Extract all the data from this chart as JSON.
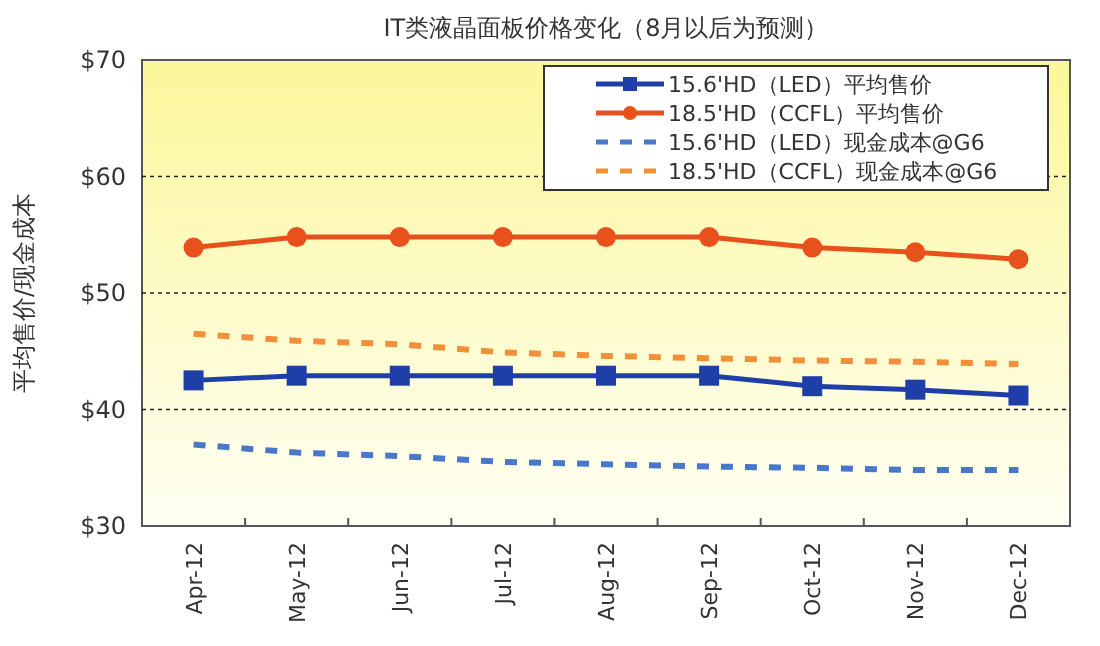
{
  "chart_data": {
    "type": "line",
    "title": "IT类液晶面板价格变化（8月以后为预测）",
    "ylabel": "平均售价/现金成本",
    "categories": [
      "Apr-12",
      "May-12",
      "Jun-12",
      "Jul-12",
      "Aug-12",
      "Sep-12",
      "Oct-12",
      "Nov-12",
      "Dec-12"
    ],
    "series": [
      {
        "name": "15.6'HD（LED）平均售价",
        "color": "#1f3fa8",
        "marker": "square",
        "line_style": "solid",
        "values": [
          42.5,
          42.9,
          42.9,
          42.9,
          42.9,
          42.9,
          42.0,
          41.7,
          41.2
        ]
      },
      {
        "name": "18.5'HD（CCFL）平均售价",
        "color": "#e8501c",
        "marker": "circle",
        "line_style": "solid",
        "values": [
          53.9,
          54.8,
          54.8,
          54.8,
          54.8,
          54.8,
          53.9,
          53.5,
          52.9
        ]
      },
      {
        "name": "15.6'HD（LED）现金成本@G6",
        "color": "#4a78c8",
        "marker": "none",
        "line_style": "dashed",
        "values": [
          37.0,
          36.3,
          36.0,
          35.5,
          35.3,
          35.1,
          35.0,
          34.8,
          34.8
        ]
      },
      {
        "name": "18.5'HD（CCFL）现金成本@G6",
        "color": "#f0903a",
        "marker": "none",
        "line_style": "dashed",
        "values": [
          46.5,
          45.9,
          45.6,
          44.9,
          44.6,
          44.4,
          44.2,
          44.1,
          43.9
        ]
      }
    ],
    "ylim": [
      30,
      70
    ],
    "yticks": [
      {
        "value": 30,
        "label": "$30"
      },
      {
        "value": 40,
        "label": "$40"
      },
      {
        "value": 50,
        "label": "$50"
      },
      {
        "value": 60,
        "label": "$60"
      },
      {
        "value": 70,
        "label": "$70"
      }
    ],
    "grid": "y",
    "legend": "top right"
  }
}
